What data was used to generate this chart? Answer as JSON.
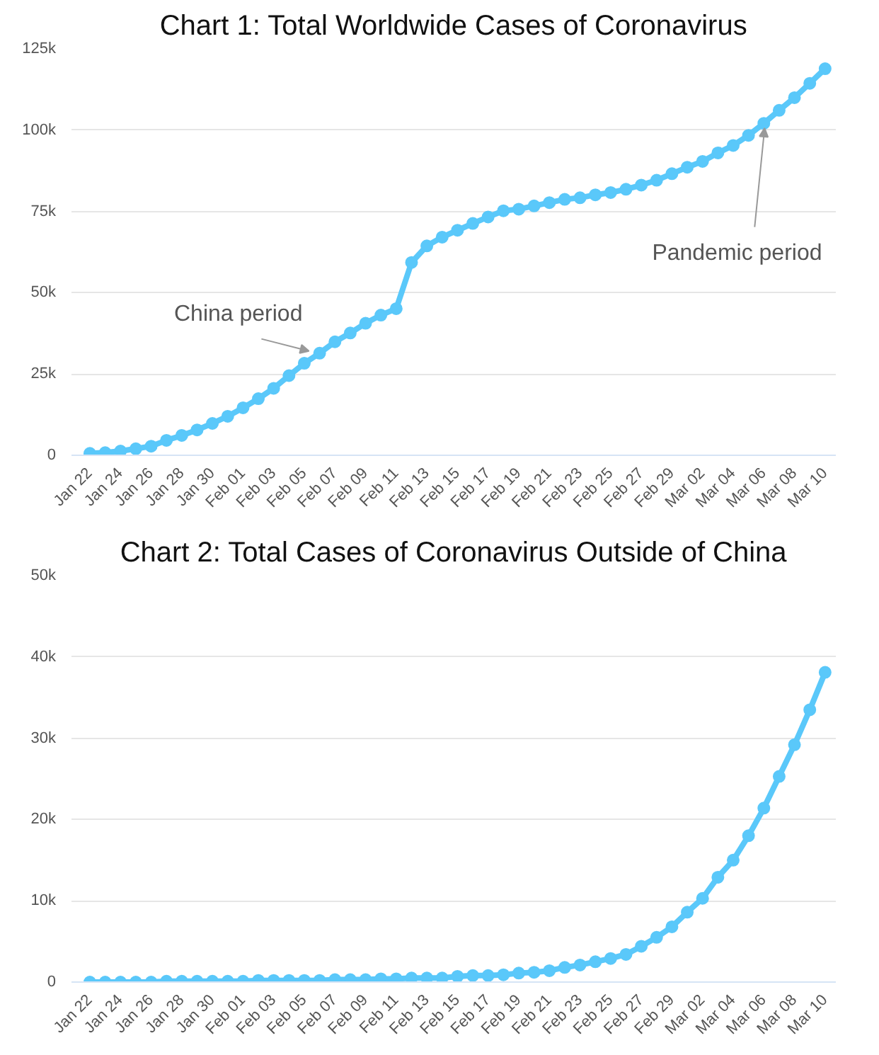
{
  "chart_data": [
    {
      "type": "line",
      "title": "Chart 1: Total Worldwide Cases of Coronavirus",
      "categories": [
        "Jan 22",
        null,
        "Jan 24",
        null,
        "Jan 26",
        null,
        "Jan 28",
        null,
        "Jan 30",
        null,
        "Feb 01",
        null,
        "Feb 03",
        null,
        "Feb 05",
        null,
        "Feb 07",
        null,
        "Feb 09",
        null,
        "Feb 11",
        null,
        "Feb 13",
        null,
        "Feb 15",
        null,
        "Feb 17",
        null,
        "Feb 19",
        null,
        "Feb 21",
        null,
        "Feb 23",
        null,
        "Feb 25",
        null,
        "Feb 27",
        null,
        "Feb 29",
        null,
        "Mar 02",
        null,
        "Mar 04",
        null,
        "Mar 06",
        null,
        "Mar 08",
        null,
        "Mar 10"
      ],
      "series": [
        {
          "color": "#5ac8fa",
          "values": [
            600,
            800,
            1300,
            2000,
            2800,
            4600,
            6100,
            7800,
            9800,
            12000,
            14600,
            17400,
            20600,
            24500,
            28300,
            31400,
            34900,
            37600,
            40600,
            43100,
            45100,
            59300,
            64400,
            67100,
            69200,
            71300,
            73300,
            75200,
            75700,
            76700,
            77700,
            78700,
            79200,
            80100,
            80800,
            81800,
            83100,
            84600,
            86600,
            88600,
            90400,
            93000,
            95300,
            98400,
            102100,
            106100,
            110000,
            114400,
            118900
          ]
        }
      ],
      "ylim": [
        0,
        125000
      ],
      "yticks": [
        0,
        {
          "value": 25000,
          "label": "25k"
        },
        {
          "value": 50000,
          "label": "50k"
        },
        {
          "value": 75000,
          "label": "75k"
        },
        {
          "value": 100000,
          "label": "100k"
        },
        {
          "value": 125000,
          "label": "125k"
        }
      ],
      "grid": "y",
      "marker": "circle",
      "line_style": "solid",
      "annotations": [
        {
          "text": "China period",
          "x": "Feb 05",
          "y": 28300
        },
        {
          "text": "Pandemic period",
          "x": "Mar 06",
          "y": 102100
        }
      ]
    },
    {
      "type": "line",
      "title": "Chart 2: Total Cases of Coronavirus Outside of China",
      "categories": [
        "Jan 22",
        null,
        "Jan 24",
        null,
        "Jan 26",
        null,
        "Jan 28",
        null,
        "Jan 30",
        null,
        "Feb 01",
        null,
        "Feb 03",
        null,
        "Feb 05",
        null,
        "Feb 07",
        null,
        "Feb 09",
        null,
        "Feb 11",
        null,
        "Feb 13",
        null,
        "Feb 15",
        null,
        "Feb 17",
        null,
        "Feb 19",
        null,
        "Feb 21",
        null,
        "Feb 23",
        null,
        "Feb 25",
        null,
        "Feb 27",
        null,
        "Feb 29",
        null,
        "Mar 02",
        null,
        "Mar 04",
        null,
        "Mar 06",
        null,
        "Mar 08",
        null,
        "Mar 10"
      ],
      "series": [
        {
          "color": "#5ac8fa",
          "values": [
            0,
            0,
            0,
            0,
            0,
            100,
            100,
            100,
            100,
            100,
            100,
            200,
            200,
            200,
            200,
            200,
            300,
            300,
            300,
            400,
            400,
            500,
            500,
            500,
            700,
            800,
            800,
            900,
            1100,
            1200,
            1400,
            1800,
            2100,
            2500,
            2900,
            3400,
            4400,
            5500,
            6800,
            8600,
            10300,
            12900,
            15000,
            18000,
            21400,
            25300,
            29200,
            33500,
            38100
          ]
        }
      ],
      "ylim": [
        0,
        50000
      ],
      "yticks": [
        0,
        {
          "value": 10000,
          "label": "10k"
        },
        {
          "value": 20000,
          "label": "20k"
        },
        {
          "value": 30000,
          "label": "30k"
        },
        {
          "value": 40000,
          "label": "40k"
        },
        {
          "value": 50000,
          "label": "50k"
        }
      ],
      "grid": "y",
      "marker": "circle",
      "line_style": "solid"
    }
  ]
}
